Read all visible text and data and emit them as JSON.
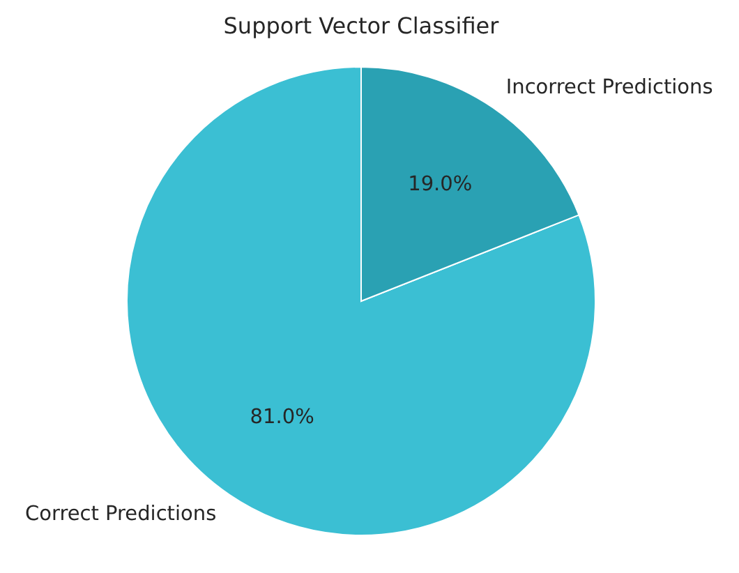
{
  "chart_data": {
    "type": "pie",
    "title": "Support Vector Classifier",
    "categories": [
      "Correct Predictions",
      "Incorrect Predictions"
    ],
    "values": [
      81.0,
      19.0
    ],
    "value_labels": [
      "81.0%",
      "19.0%"
    ],
    "colors": [
      "#3bbfd3",
      "#2aa1b3"
    ]
  }
}
